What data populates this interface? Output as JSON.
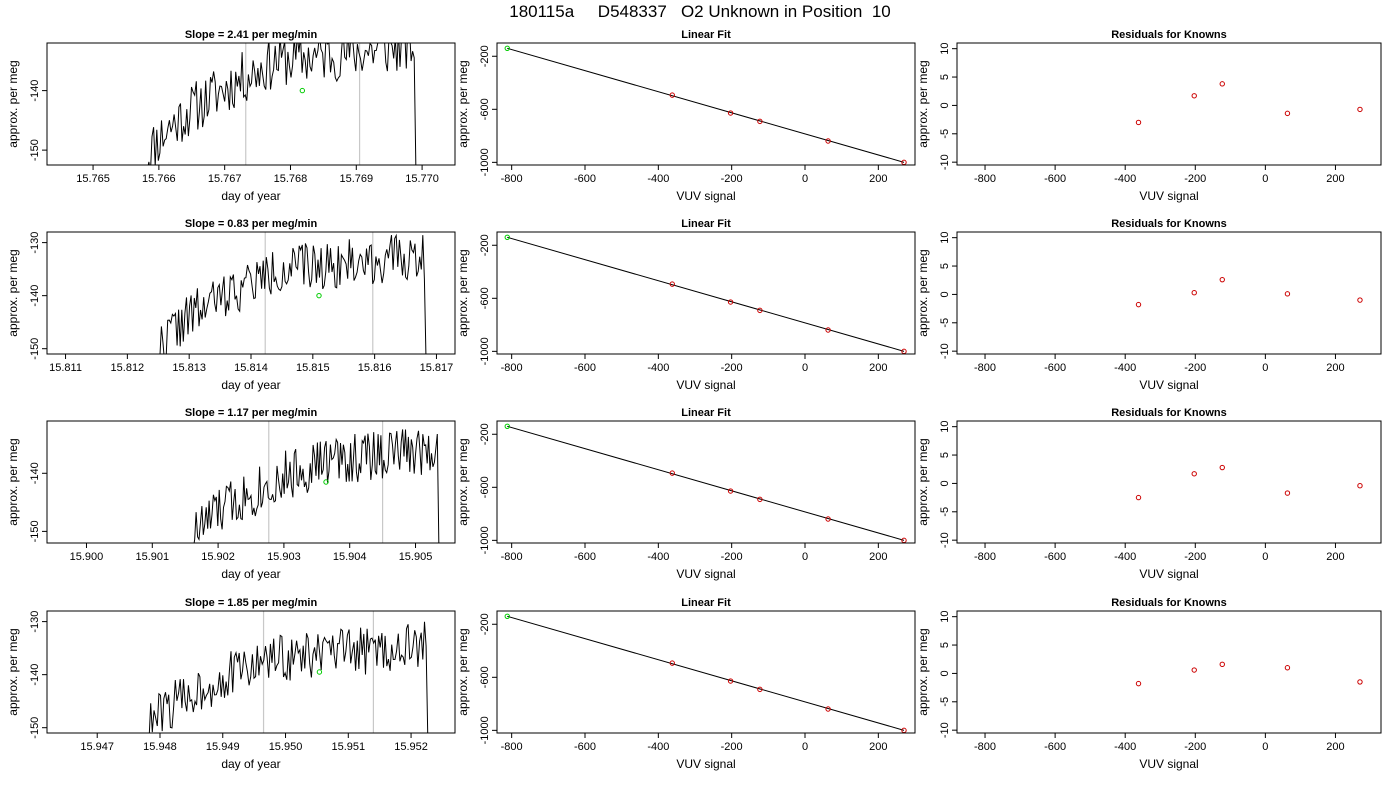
{
  "figure_title": "180115a     D548337   O2 Unknown in Position  10",
  "colors": {
    "trace": "#000000",
    "marker_unknown": "#00cc00",
    "marker_known": "#cc0000",
    "fit_line": "#000000",
    "vline": "#c8c8c8"
  },
  "chart_data": [
    {
      "type": "line",
      "title": "Slope =  2.41  per meg/min",
      "xlabel": "day of year",
      "ylabel": "approx. per meg",
      "xlim": [
        15.7643,
        15.7705
      ],
      "ylim": [
        -152.5,
        -132
      ],
      "xticks": [
        "15.765",
        "15.766",
        "15.767",
        "15.768",
        "15.769",
        "15.770"
      ],
      "yticks": [
        "-150",
        "-140"
      ],
      "x": [
        15.7658,
        15.7678
      ],
      "y": [
        -152.5,
        -135
      ],
      "seed": 11,
      "vlines": [
        15.76732,
        15.76905
      ],
      "marker": {
        "x": 15.76818,
        "y": -140
      }
    },
    {
      "type": "scatter",
      "title": "Linear Fit",
      "xlabel": "VUV signal",
      "ylabel": "approx. per meg",
      "xlim": [
        -840,
        300
      ],
      "ylim": [
        -1020,
        -100
      ],
      "xticks": [
        "-800",
        "-600",
        "-400",
        "-200",
        "0",
        "200"
      ],
      "yticks": [
        "-1000",
        "-600",
        "-200"
      ],
      "fit": {
        "x": [
          -812,
          270
        ],
        "y": [
          -140,
          -1000
        ]
      },
      "green_points": {
        "x": [
          -812
        ],
        "y": [
          -140
        ]
      },
      "points": {
        "x": [
          -362,
          -203,
          -123,
          63,
          270
        ],
        "y": [
          -493,
          -628,
          -691,
          -839,
          -1000
        ]
      }
    },
    {
      "type": "scatter",
      "title": "Residuals for Knowns",
      "xlabel": "VUV signal",
      "ylabel": "approx. per meg",
      "xlim": [
        -880,
        330
      ],
      "ylim": [
        -10.5,
        11
      ],
      "xticks": [
        "-800",
        "-600",
        "-400",
        "-200",
        "0",
        "200"
      ],
      "yticks": [
        "-10",
        "-5",
        "0",
        "5",
        "10"
      ],
      "points": {
        "x": [
          -362,
          -203,
          -123,
          63,
          270
        ],
        "y": [
          -3.0,
          1.7,
          3.8,
          -1.4,
          -0.7
        ]
      }
    },
    {
      "type": "line",
      "title": "Slope =  0.83  per meg/min",
      "xlabel": "day of year",
      "ylabel": "approx. per meg",
      "xlim": [
        15.8107,
        15.8173
      ],
      "ylim": [
        -151,
        -128
      ],
      "xticks": [
        "15.811",
        "15.812",
        "15.813",
        "15.814",
        "15.815",
        "15.816",
        "15.817"
      ],
      "yticks": [
        "-150",
        "-140",
        "-130"
      ],
      "x": [
        15.8125,
        15.8145
      ],
      "y": [
        -151,
        -135
      ],
      "seed": 22,
      "vlines": [
        15.81423,
        15.81597
      ],
      "marker": {
        "x": 15.8151,
        "y": -140
      }
    },
    {
      "type": "scatter",
      "title": "Linear Fit",
      "xlabel": "VUV signal",
      "ylabel": "approx. per meg",
      "xlim": [
        -840,
        300
      ],
      "ylim": [
        -1020,
        -100
      ],
      "xticks": [
        "-800",
        "-600",
        "-400",
        "-200",
        "0",
        "200"
      ],
      "yticks": [
        "-1000",
        "-600",
        "-200"
      ],
      "fit": {
        "x": [
          -812,
          270
        ],
        "y": [
          -140,
          -1000
        ]
      },
      "green_points": {
        "x": [
          -812
        ],
        "y": [
          -140
        ]
      },
      "points": {
        "x": [
          -362,
          -203,
          -123,
          63,
          270
        ],
        "y": [
          -493,
          -628,
          -691,
          -839,
          -1000
        ]
      }
    },
    {
      "type": "scatter",
      "title": "Residuals for Knowns",
      "xlabel": "VUV signal",
      "ylabel": "approx. per meg",
      "xlim": [
        -880,
        330
      ],
      "ylim": [
        -10.5,
        11
      ],
      "xticks": [
        "-800",
        "-600",
        "-400",
        "-200",
        "0",
        "200"
      ],
      "yticks": [
        "-10",
        "-5",
        "0",
        "5",
        "10"
      ],
      "points": {
        "x": [
          -362,
          -203,
          -123,
          63,
          270
        ],
        "y": [
          -1.8,
          0.3,
          2.6,
          0.1,
          -1.0
        ]
      }
    },
    {
      "type": "line",
      "title": "Slope =  1.17  per meg/min",
      "xlabel": "day of year",
      "ylabel": "approx. per meg",
      "xlim": [
        15.8994,
        15.9056
      ],
      "ylim": [
        -152,
        -131
      ],
      "xticks": [
        "15.900",
        "15.901",
        "15.902",
        "15.903",
        "15.904",
        "15.905"
      ],
      "yticks": [
        "-150",
        "-140"
      ],
      "x": [
        15.9016,
        15.9036
      ],
      "y": [
        -152,
        -138
      ],
      "seed": 33,
      "vlines": [
        15.90277,
        15.9045
      ],
      "marker": {
        "x": 15.90364,
        "y": -141.5
      }
    },
    {
      "type": "scatter",
      "title": "Linear Fit",
      "xlabel": "VUV signal",
      "ylabel": "approx. per meg",
      "xlim": [
        -840,
        300
      ],
      "ylim": [
        -1020,
        -100
      ],
      "xticks": [
        "-800",
        "-600",
        "-400",
        "-200",
        "0",
        "200"
      ],
      "yticks": [
        "-1000",
        "-600",
        "-200"
      ],
      "fit": {
        "x": [
          -812,
          270
        ],
        "y": [
          -140,
          -1000
        ]
      },
      "green_points": {
        "x": [
          -812
        ],
        "y": [
          -140
        ]
      },
      "points": {
        "x": [
          -362,
          -203,
          -123,
          63,
          270
        ],
        "y": [
          -493,
          -628,
          -691,
          -839,
          -1000
        ]
      }
    },
    {
      "type": "scatter",
      "title": "Residuals for Knowns",
      "xlabel": "VUV signal",
      "ylabel": "approx. per meg",
      "xlim": [
        -880,
        330
      ],
      "ylim": [
        -10.5,
        11
      ],
      "xticks": [
        "-800",
        "-600",
        "-400",
        "-200",
        "0",
        "200"
      ],
      "yticks": [
        "-10",
        "-5",
        "0",
        "5",
        "10"
      ],
      "points": {
        "x": [
          -362,
          -203,
          -123,
          63,
          270
        ],
        "y": [
          -2.5,
          1.7,
          2.8,
          -1.7,
          -0.4
        ]
      }
    },
    {
      "type": "line",
      "title": "Slope =  1.85  per meg/min",
      "xlabel": "day of year",
      "ylabel": "approx. per meg",
      "xlim": [
        15.9462,
        15.9527
      ],
      "ylim": [
        -151,
        -128
      ],
      "xticks": [
        "15.947",
        "15.948",
        "15.949",
        "15.950",
        "15.951",
        "15.952"
      ],
      "yticks": [
        "-150",
        "-140",
        "-130"
      ],
      "x": [
        15.9478,
        15.9498
      ],
      "y": [
        -151,
        -137
      ],
      "seed": 44,
      "vlines": [
        15.94965,
        15.9514
      ],
      "marker": {
        "x": 15.95054,
        "y": -139.5
      }
    },
    {
      "type": "scatter",
      "title": "Linear Fit",
      "xlabel": "VUV signal",
      "ylabel": "approx. per meg",
      "xlim": [
        -840,
        300
      ],
      "ylim": [
        -1020,
        -100
      ],
      "xticks": [
        "-800",
        "-600",
        "-400",
        "-200",
        "0",
        "200"
      ],
      "yticks": [
        "-1000",
        "-600",
        "-200"
      ],
      "fit": {
        "x": [
          -812,
          270
        ],
        "y": [
          -140,
          -1000
        ]
      },
      "green_points": {
        "x": [
          -812
        ],
        "y": [
          -140
        ]
      },
      "points": {
        "x": [
          -362,
          -203,
          -123,
          63,
          270
        ],
        "y": [
          -493,
          -628,
          -691,
          -839,
          -1000
        ]
      }
    },
    {
      "type": "scatter",
      "title": "Residuals for Knowns",
      "xlabel": "VUV signal",
      "ylabel": "approx. per meg",
      "xlim": [
        -880,
        330
      ],
      "ylim": [
        -10.5,
        11
      ],
      "xticks": [
        "-800",
        "-600",
        "-400",
        "-200",
        "0",
        "200"
      ],
      "yticks": [
        "-10",
        "-5",
        "0",
        "5",
        "10"
      ],
      "points": {
        "x": [
          -362,
          -203,
          -123,
          63,
          270
        ],
        "y": [
          -1.8,
          0.6,
          1.6,
          1.0,
          -1.5
        ]
      }
    }
  ]
}
